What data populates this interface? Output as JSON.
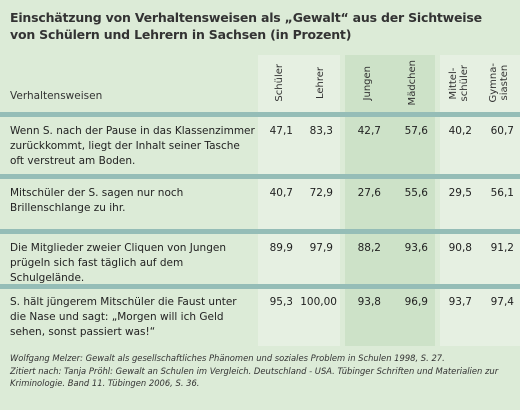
{
  "title": "Einschätzung von Verhaltensweisen als „Gewalt“ aus der Sichtweise von Schülern und Lehrern in Sachsen (in Prozent)",
  "table": {
    "row_header": "Verhaltensweisen",
    "columns": [
      "Schüler",
      "Lehrer",
      "Jungen",
      "Mädchen",
      "Mittel-\nschüler",
      "Gymna-\nsiasten"
    ],
    "rows": [
      {
        "label": "Wenn S. nach der Pause in das Klassenzimmer zurückkommt, liegt der Inhalt seiner Tasche oft verstreut am Boden.",
        "values": [
          "47,1",
          "83,3",
          "42,7",
          "57,6",
          "40,2",
          "60,7"
        ]
      },
      {
        "label": "Mitschüler der S. sagen nur noch Brillenschlange zu ihr.",
        "values": [
          "40,7",
          "72,9",
          "27,6",
          "55,6",
          "29,5",
          "56,1"
        ]
      },
      {
        "label": "Die Mitglieder zweier Cliquen von Jungen prügeln sich fast täglich auf dem Schulgelände.",
        "values": [
          "89,9",
          "97,9",
          "88,2",
          "93,6",
          "90,8",
          "91,2"
        ]
      },
      {
        "label": "S. hält jüngerem Mitschüler die Faust unter die Nase und sagt: „Morgen will ich Geld sehen, sonst passiert was!“",
        "values": [
          "95,3",
          "100,00",
          "93,8",
          "96,9",
          "93,7",
          "97,4"
        ]
      }
    ]
  },
  "footer": {
    "line1": "Wolfgang Melzer: Gewalt als gesellschaftliches Phänomen und soziales Problem in Schulen 1998, S. 27.",
    "line2": "Zitiert nach: Tanja Pröhl: Gewalt an Schulen im Vergleich. Deutschland - USA. Tübinger Schriften und Materialien zur Kriminologie. Band 11. Tübingen 2006, S. 36."
  },
  "colors": {
    "background": "#dcebd7",
    "separator": "#95bdb7",
    "gender_band": "#cde2c8"
  }
}
